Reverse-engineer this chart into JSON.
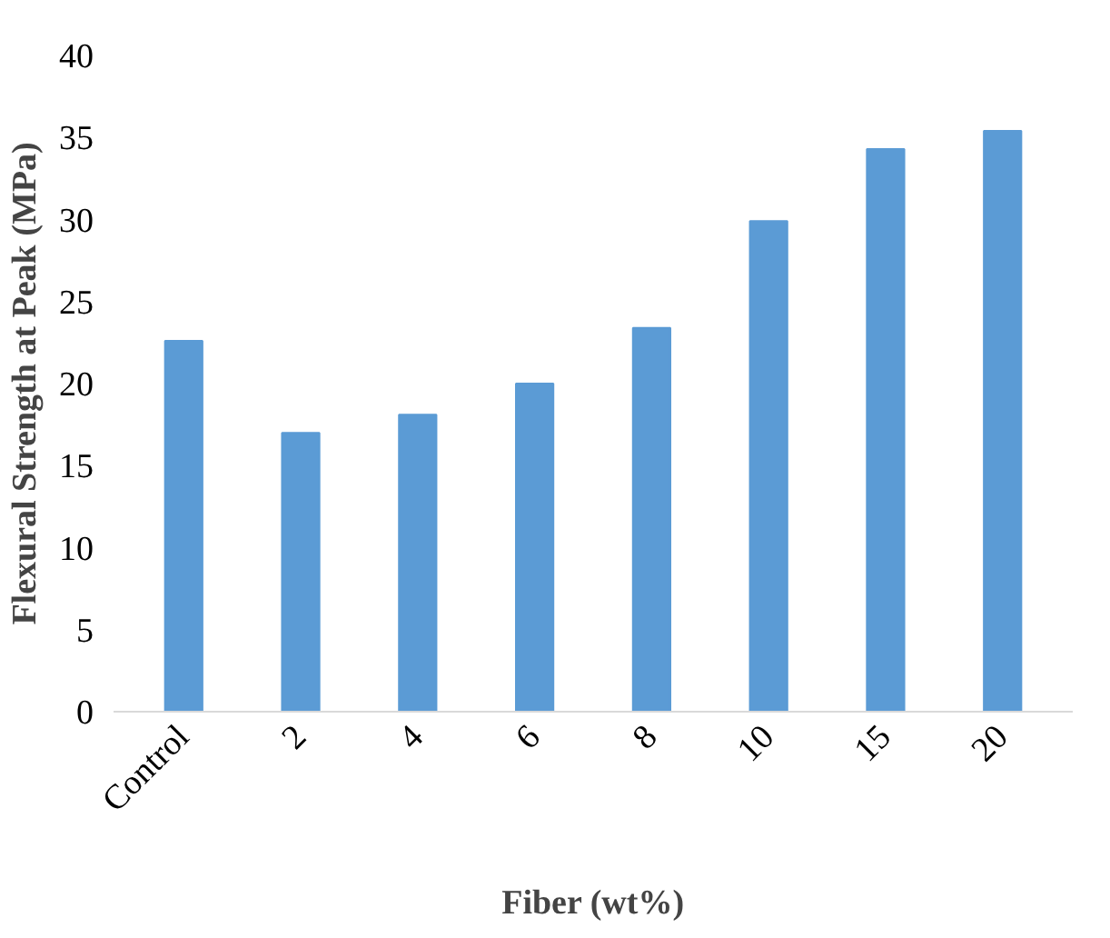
{
  "chart_data": {
    "type": "bar",
    "xlabel": "Fiber (wt%)",
    "ylabel": "Flexural Strength at Peak (MPa)",
    "categories": [
      "Control",
      "2",
      "4",
      "6",
      "8",
      "10",
      "15",
      "20"
    ],
    "values": [
      22.6,
      17.0,
      18.1,
      20.0,
      23.4,
      29.9,
      34.3,
      35.4
    ],
    "color": "#5b9bd5",
    "ylim": [
      0,
      40
    ],
    "yticks": [
      0,
      5,
      10,
      15,
      20,
      25,
      30,
      35,
      40
    ],
    "grid": false
  }
}
